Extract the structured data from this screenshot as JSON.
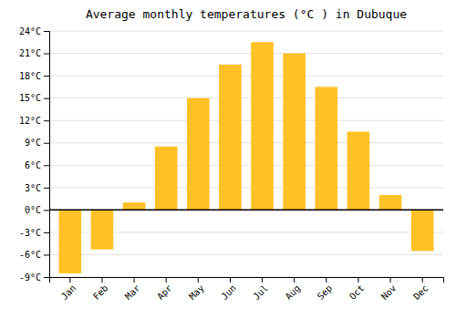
{
  "chart_data": {
    "type": "bar",
    "title": "Average monthly temperatures (°C ) in Dubuque",
    "categories": [
      "Jan",
      "Feb",
      "Mar",
      "Apr",
      "May",
      "Jun",
      "Jul",
      "Aug",
      "Sep",
      "Oct",
      "Nov",
      "Dec"
    ],
    "values": [
      -8.5,
      -5.3,
      1.0,
      8.5,
      15.0,
      19.5,
      22.5,
      21.0,
      16.5,
      10.5,
      2.0,
      -5.5
    ],
    "color": "#FFC125",
    "ylim": [
      -9,
      24
    ],
    "yticks": [
      {
        "value": -9,
        "label": "-9°C"
      },
      {
        "value": -6,
        "label": "-6°C"
      },
      {
        "value": -3,
        "label": "-3°C"
      },
      {
        "value": 0,
        "label": "0°C"
      },
      {
        "value": 3,
        "label": "3°C"
      },
      {
        "value": 6,
        "label": "6°C"
      },
      {
        "value": 9,
        "label": "9°C"
      },
      {
        "value": 12,
        "label": "12°C"
      },
      {
        "value": 15,
        "label": "15°C"
      },
      {
        "value": 18,
        "label": "18°C"
      },
      {
        "value": 21,
        "label": "21°C"
      },
      {
        "value": 24,
        "label": "24°C"
      }
    ],
    "grid": true
  }
}
